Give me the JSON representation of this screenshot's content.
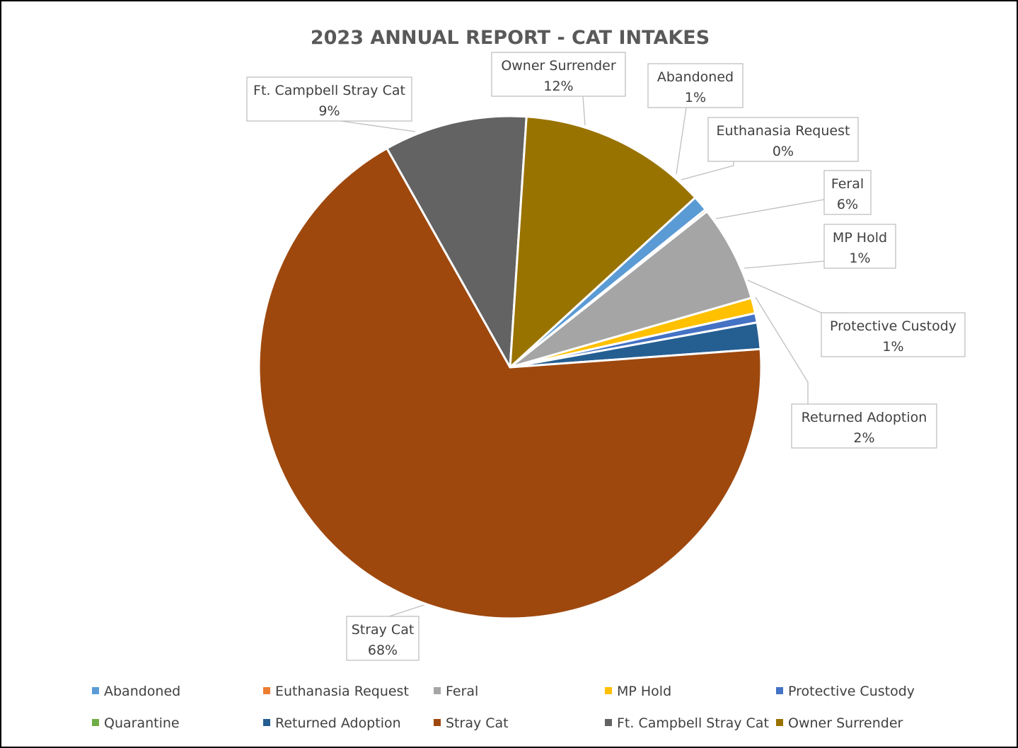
{
  "chart_data": {
    "type": "pie",
    "title": "2023 ANNUAL REPORT - CAT INTAKES",
    "slices": [
      {
        "name": "Abandoned",
        "percent": 1,
        "share": 0.01,
        "color": "#5b9bd5"
      },
      {
        "name": "Euthanasia Request",
        "percent": 0,
        "share": 0.0015,
        "color": "#ed7d31"
      },
      {
        "name": "Feral",
        "percent": 6,
        "share": 0.062,
        "color": "#a5a5a5"
      },
      {
        "name": "MP Hold",
        "percent": 1,
        "share": 0.01,
        "color": "#ffc000"
      },
      {
        "name": "Protective Custody",
        "percent": 1,
        "share": 0.006,
        "color": "#4472c4"
      },
      {
        "name": "Quarantine",
        "percent": 0,
        "share": 0.0,
        "color": "#70ad47"
      },
      {
        "name": "Returned Adoption",
        "percent": 2,
        "share": 0.017,
        "color": "#255e91"
      },
      {
        "name": "Stray Cat",
        "percent": 68,
        "share": 0.68,
        "color": "#9e480e"
      },
      {
        "name": "Ft. Campbell Stray Cat",
        "percent": 9,
        "share": 0.092,
        "color": "#636363"
      },
      {
        "name": "Owner Surrender",
        "percent": 12,
        "share": 0.1215,
        "color": "#997300"
      }
    ],
    "data_labels": [
      {
        "series": "Owner Surrender",
        "name": "Owner Surrender",
        "value": "12%"
      },
      {
        "series": "Abandoned",
        "name": "Abandoned",
        "value": "1%"
      },
      {
        "series": "Euthanasia Request",
        "name": "Euthanasia Request",
        "value": "0%"
      },
      {
        "series": "Feral",
        "name": "Feral",
        "value": "6%"
      },
      {
        "series": "MP Hold",
        "name": "MP Hold",
        "value": "1%"
      },
      {
        "series": "Protective Custody",
        "name": "Protective Custody",
        "value": "1%"
      },
      {
        "series": "Returned Adoption",
        "name": "Returned Adoption",
        "value": "2%"
      },
      {
        "series": "Stray Cat",
        "name": "Stray Cat",
        "value": "68%"
      },
      {
        "series": "Ft. Campbell Stray Cat",
        "name": "Ft. Campbell Stray Cat",
        "value": "9%"
      }
    ],
    "legend": {
      "position": "bottom",
      "items": [
        "Abandoned",
        "Euthanasia Request",
        "Feral",
        "MP Hold",
        "Protective Custody",
        "Quarantine",
        "Returned Adoption",
        "Stray Cat",
        "Ft. Campbell Stray Cat",
        "Owner Surrender"
      ]
    }
  }
}
